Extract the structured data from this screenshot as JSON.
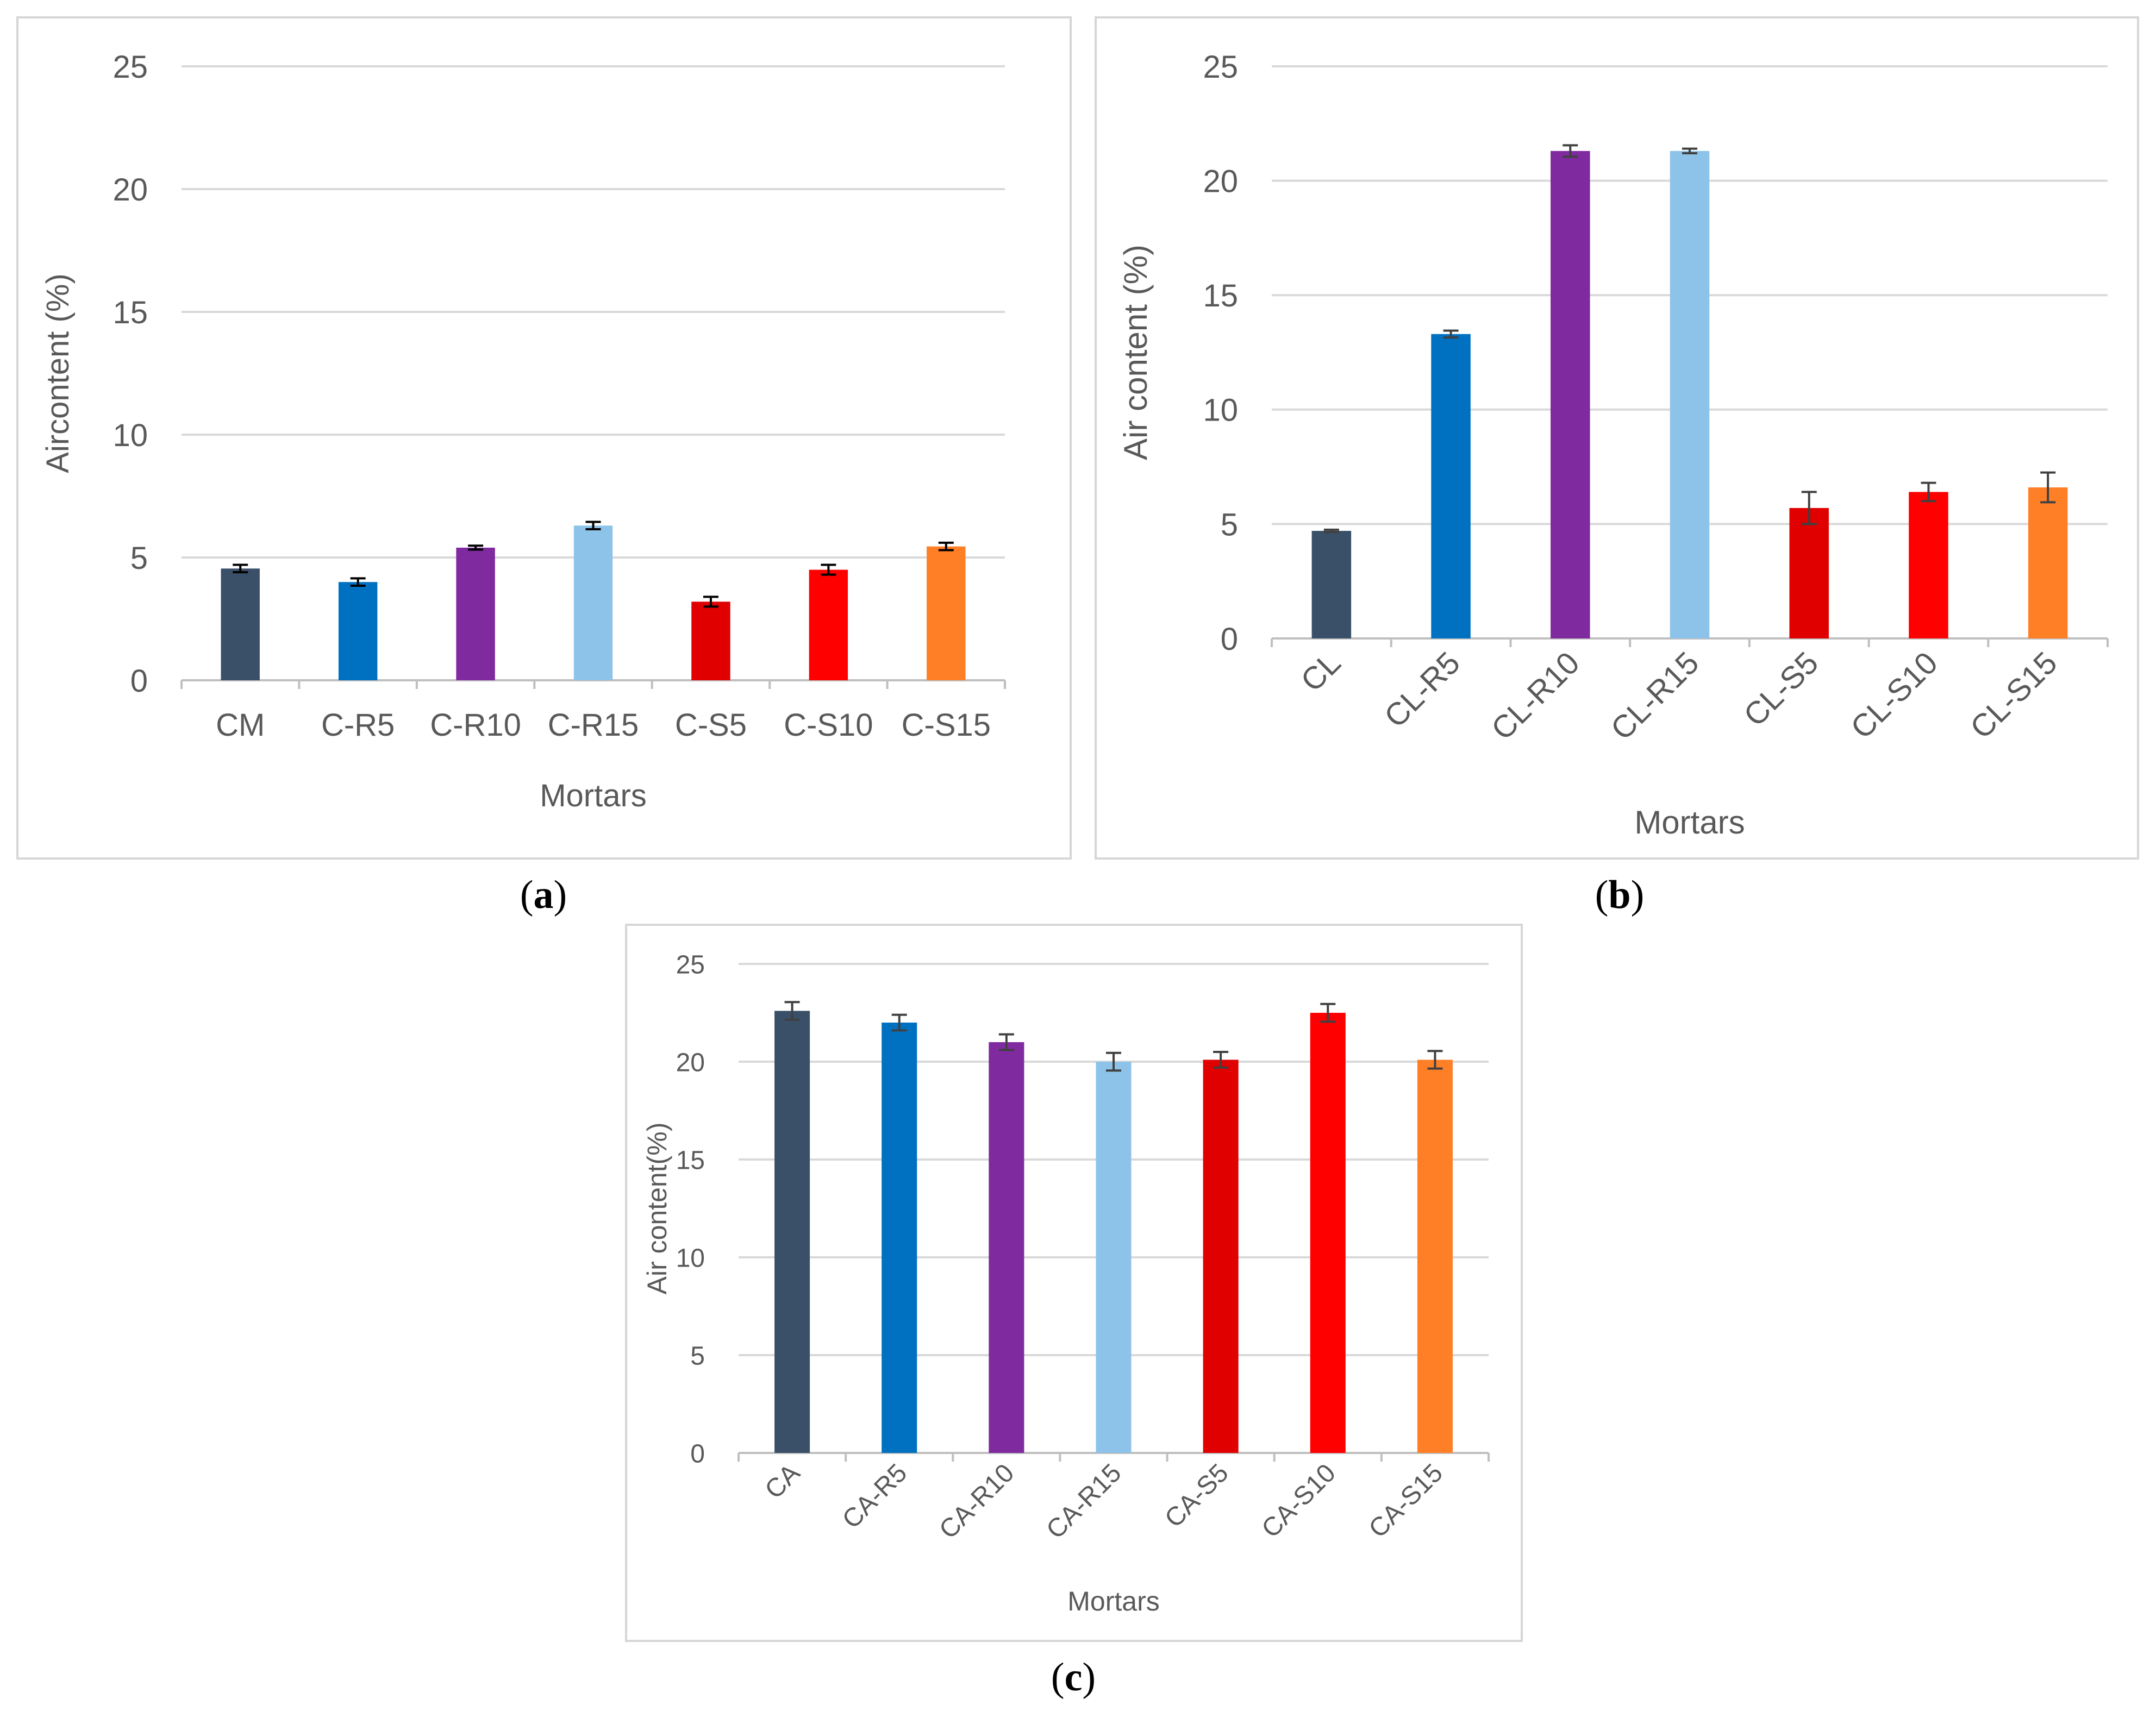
{
  "chart_data": [
    {
      "type": "bar",
      "panel_label": "a",
      "categories": [
        "CM",
        "C-R5",
        "C-R10",
        "C-R15",
        "C-S5",
        "C-S10",
        "C-S15"
      ],
      "values": [
        4.55,
        4.0,
        5.4,
        6.3,
        3.2,
        4.5,
        5.45
      ],
      "errors": [
        0.15,
        0.15,
        0.08,
        0.15,
        0.2,
        0.2,
        0.15
      ],
      "colors": [
        "#3a5068",
        "#0070c0",
        "#7f2a9f",
        "#8dc3e8",
        "#e00000",
        "#ff0000",
        "#ff7f27"
      ],
      "title": "",
      "xlabel": "Mortars",
      "ylabel": "Aircontent (%)",
      "ylim": [
        0,
        25
      ],
      "yticks": [
        0,
        5,
        10,
        15,
        20,
        25
      ],
      "xtick_rotation": 0,
      "grid": true
    },
    {
      "type": "bar",
      "panel_label": "b",
      "categories": [
        "CL",
        "CL-R5",
        "CL-R10",
        "CL-R15",
        "CL-S5",
        "CL-S10",
        "CL-S15"
      ],
      "values": [
        4.7,
        13.3,
        21.3,
        21.3,
        5.7,
        6.4,
        6.6
      ],
      "errors": [
        0.05,
        0.15,
        0.25,
        0.1,
        0.7,
        0.4,
        0.65
      ],
      "colors": [
        "#3a5068",
        "#0070c0",
        "#7f2a9f",
        "#8dc3e8",
        "#e00000",
        "#ff0000",
        "#ff7f27"
      ],
      "title": "",
      "xlabel": "Mortars",
      "ylabel": "Air content (%)",
      "ylim": [
        0,
        25
      ],
      "yticks": [
        0,
        5,
        10,
        15,
        20,
        25
      ],
      "xtick_rotation": -45,
      "grid": true
    },
    {
      "type": "bar",
      "panel_label": "c",
      "categories": [
        "CA",
        "CA-R5",
        "CA-R10",
        "CA-R15",
        "CA-S5",
        "CA-S10",
        "CA-S15"
      ],
      "values": [
        22.6,
        22.0,
        21.0,
        20.0,
        20.1,
        22.5,
        20.1
      ],
      "errors": [
        0.45,
        0.4,
        0.4,
        0.45,
        0.4,
        0.45,
        0.45
      ],
      "colors": [
        "#3a5068",
        "#0070c0",
        "#7f2a9f",
        "#8dc3e8",
        "#e00000",
        "#ff0000",
        "#ff7f27"
      ],
      "title": "",
      "xlabel": "Mortars",
      "ylabel": "Air content(%)",
      "ylim": [
        0,
        25
      ],
      "yticks": [
        0,
        5,
        10,
        15,
        20,
        25
      ],
      "xtick_rotation": -45,
      "grid": true
    }
  ],
  "captions": {
    "a": "a",
    "b": "b",
    "c": "c"
  }
}
